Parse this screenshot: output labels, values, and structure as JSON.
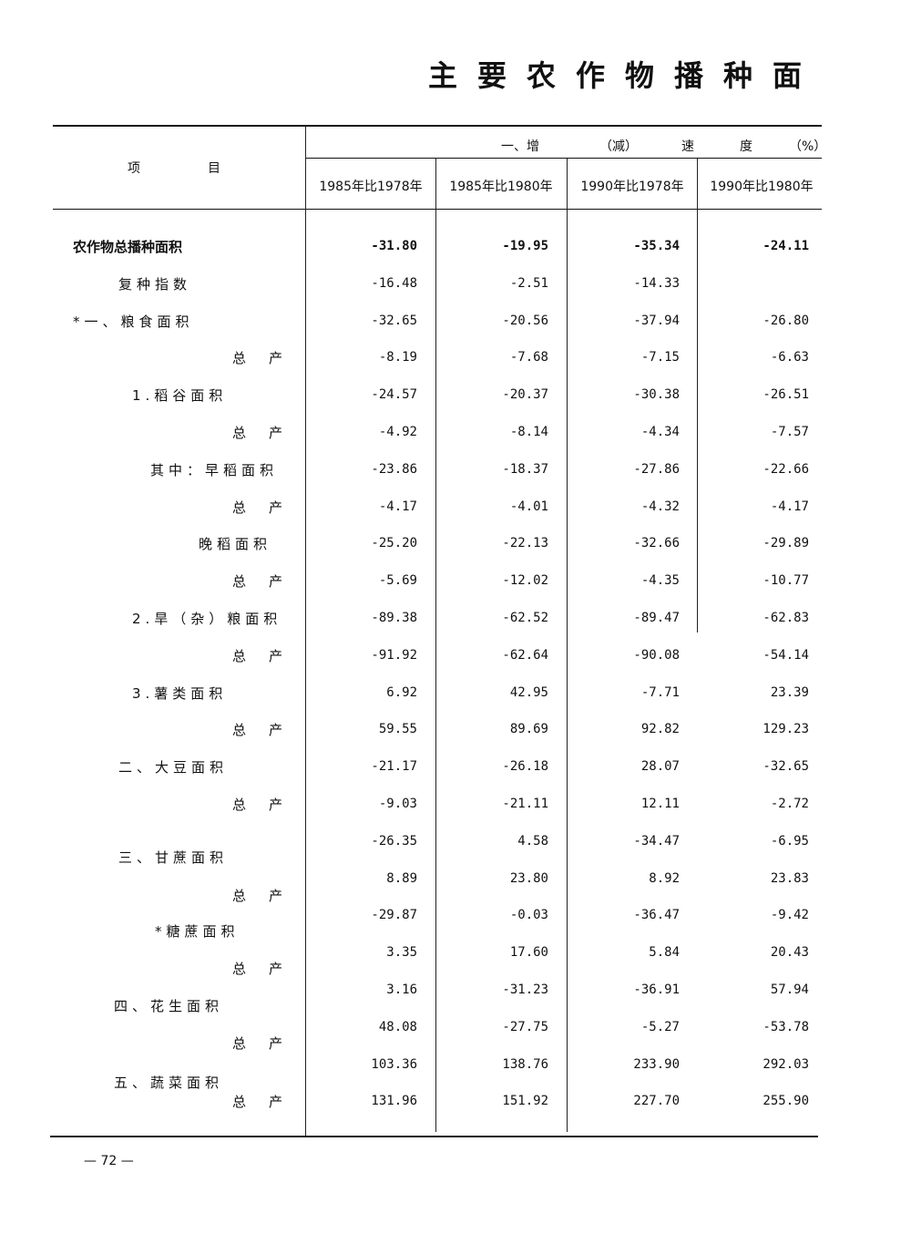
{
  "title": "主要农作物播种面",
  "table": {
    "item_header": "项　　　目",
    "group_header": {
      "part1": "一、增",
      "part2": "（减）",
      "part3": "速",
      "part4": "度",
      "unit": "（%）"
    },
    "columns": [
      "1985年比1978年",
      "1985年比1980年",
      "1990年比1978年",
      "1990年比1980年"
    ],
    "rows": [
      {
        "label": "农作物总播种面积",
        "values": [
          "-31.80",
          "-19.95",
          "-35.34",
          "-24.11"
        ]
      },
      {
        "label": "复种指数",
        "values": [
          "-16.48",
          "-2.51",
          "-14.33",
          ""
        ]
      },
      {
        "label": "*一、粮食面积",
        "values": [
          "-32.65",
          "-20.56",
          "-37.94",
          "-26.80"
        ]
      },
      {
        "label": "总　产",
        "values": [
          "-8.19",
          "-7.68",
          "-7.15",
          "-6.63"
        ]
      },
      {
        "label": "1.稻谷面积",
        "values": [
          "-24.57",
          "-20.37",
          "-30.38",
          "-26.51"
        ]
      },
      {
        "label": "总　产",
        "values": [
          "-4.92",
          "-8.14",
          "-4.34",
          "-7.57"
        ]
      },
      {
        "label": "其中：早稻面积",
        "values": [
          "-23.86",
          "-18.37",
          "-27.86",
          "-22.66"
        ]
      },
      {
        "label": "总　产",
        "values": [
          "-4.17",
          "-4.01",
          "-4.32",
          "-4.17"
        ]
      },
      {
        "label": "晚稻面积",
        "values": [
          "-25.20",
          "-22.13",
          "-32.66",
          "-29.89"
        ]
      },
      {
        "label": "总　产",
        "values": [
          "-5.69",
          "-12.02",
          "-4.35",
          "-10.77"
        ]
      },
      {
        "label": "2.旱（杂）粮面积",
        "values": [
          "-89.38",
          "-62.52",
          "-89.47",
          "-62.83"
        ]
      },
      {
        "label": "总　产",
        "values": [
          "-91.92",
          "-62.64",
          "-90.08",
          "-54.14"
        ]
      },
      {
        "label": "3.薯类面积",
        "values": [
          "6.92",
          "42.95",
          "-7.71",
          "23.39"
        ]
      },
      {
        "label": "总　产",
        "values": [
          "59.55",
          "89.69",
          "92.82",
          "129.23"
        ]
      },
      {
        "label": "二、大豆面积",
        "values": [
          "-21.17",
          "-26.18",
          "28.07",
          "-32.65"
        ]
      },
      {
        "label": "总　产",
        "values": [
          "-9.03",
          "-21.11",
          "12.11",
          "-2.72"
        ]
      },
      {
        "label": "三、甘蔗面积",
        "values": [
          "-26.35",
          "4.58",
          "-34.47",
          "-6.95"
        ]
      },
      {
        "label": "总　产",
        "values": [
          "8.89",
          "23.80",
          "8.92",
          "23.83"
        ]
      },
      {
        "label": "*糖蔗面积",
        "values": [
          "-29.87",
          "-0.03",
          "-36.47",
          "-9.42"
        ]
      },
      {
        "label": "总　产",
        "values": [
          "3.35",
          "17.60",
          "5.84",
          "20.43"
        ]
      },
      {
        "label": "四、花生面积",
        "values": [
          "3.16",
          "-31.23",
          "-36.91",
          "57.94"
        ]
      },
      {
        "label": "总　产",
        "values": [
          "48.08",
          "-27.75",
          "-5.27",
          "-53.78"
        ]
      },
      {
        "label": "五、蔬菜面积",
        "values": [
          "103.36",
          "138.76",
          "233.90",
          "292.03"
        ]
      },
      {
        "label": "总　产",
        "values": [
          "131.96",
          "151.92",
          "227.70",
          "255.90"
        ]
      }
    ]
  },
  "page_number": "— 72 —"
}
